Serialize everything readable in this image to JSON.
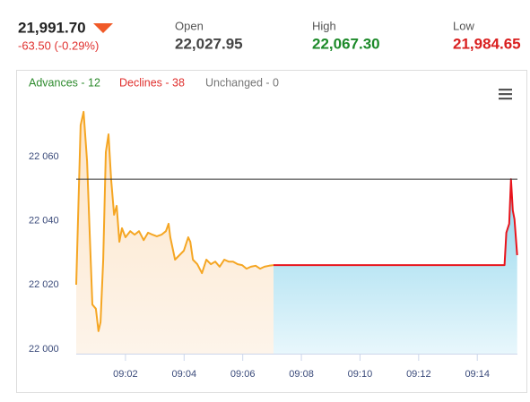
{
  "header": {
    "price": "21,991.70",
    "change": "-63.50 (-0.29%)",
    "open_label": "Open",
    "open_value": "22,027.95",
    "high_label": "High",
    "high_value": "22,067.30",
    "low_label": "Low",
    "low_value": "21,984.65"
  },
  "breadth": {
    "advances": "Advances - 12",
    "declines": "Declines - 38",
    "unchanged": "Unchanged - 0"
  },
  "chart_data": {
    "type": "area",
    "xlim": [
      540.32,
      555.37
    ],
    "ylim": [
      21998.6,
      22077.6
    ],
    "xticks": [
      {
        "value": 542,
        "label": "09:02"
      },
      {
        "value": 544,
        "label": "09:04"
      },
      {
        "value": 546,
        "label": "09:06"
      },
      {
        "value": 548,
        "label": "09:08"
      },
      {
        "value": 550,
        "label": "09:10"
      },
      {
        "value": 552,
        "label": "09:12"
      },
      {
        "value": 554,
        "label": "09:14"
      }
    ],
    "yticks": [
      {
        "value": 22000,
        "label": "22 000"
      },
      {
        "value": 22020,
        "label": "22 020"
      },
      {
        "value": 22040,
        "label": "22 040"
      },
      {
        "value": 22060,
        "label": "22 060"
      }
    ],
    "reference_line": 22053,
    "series": [
      {
        "color": "#f5a623",
        "area_color": "#fde5c8",
        "x": [
          540.32,
          540.47,
          540.57,
          540.69,
          540.78,
          540.87,
          540.99,
          541.08,
          541.15,
          541.24,
          541.33,
          541.42,
          541.51,
          541.61,
          541.7,
          541.79,
          541.88,
          542.0,
          542.16,
          542.31,
          542.46,
          542.62,
          542.77,
          542.92,
          543.07,
          543.23,
          543.38,
          543.47,
          543.53,
          543.69,
          543.84,
          543.99,
          544.14,
          544.21,
          544.3,
          544.45,
          544.61,
          544.76,
          544.91,
          545.06,
          545.21,
          545.37,
          545.52,
          545.67,
          545.83,
          545.98,
          546.13,
          546.28,
          546.44,
          546.59,
          546.74,
          546.9,
          547.05
        ],
        "values": [
          22020.1,
          22069.8,
          22074.0,
          22058.6,
          22036.3,
          22013.9,
          22012.6,
          22005.6,
          22008.4,
          22027.9,
          22061.4,
          22067.0,
          22053.0,
          22041.9,
          22044.7,
          22033.5,
          22037.7,
          22034.9,
          22036.8,
          22035.7,
          22036.8,
          22034.0,
          22036.3,
          22035.7,
          22035.2,
          22035.7,
          22036.8,
          22039.1,
          22034.9,
          22027.9,
          22029.3,
          22030.7,
          22034.9,
          22033.5,
          22027.9,
          22026.5,
          22023.7,
          22027.9,
          22026.5,
          22027.3,
          22025.7,
          22027.9,
          22027.3,
          22027.3,
          22026.5,
          22026.2,
          22025.1,
          22025.7,
          22026.0,
          22025.1,
          22025.7,
          22026.0,
          22026.2
        ]
      },
      {
        "color": "#e8141c",
        "area_color": "#8fd5ec",
        "x": [
          547.05,
          554.93,
          554.99,
          555.09,
          555.15,
          555.21,
          555.27,
          555.36
        ],
        "values": [
          22026.2,
          22026.2,
          22036.3,
          22039.1,
          22053.0,
          22043.3,
          22040.5,
          22029.3
        ]
      }
    ]
  }
}
